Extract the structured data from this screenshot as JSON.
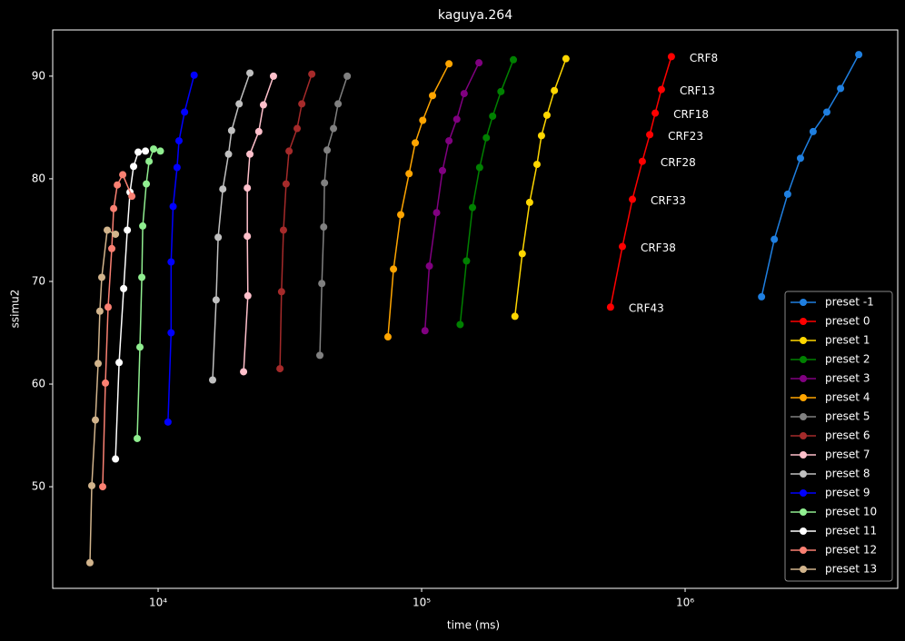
{
  "chart_data": {
    "type": "line",
    "title": "kaguya.264",
    "x_label": "time (ms)",
    "y_label": "ssimu2",
    "x_scale": "log",
    "xlim": [
      3980,
      6410000
    ],
    "ylim": [
      40.1,
      94.5
    ],
    "xticks": [
      {
        "value": 10000,
        "label": "10⁴"
      },
      {
        "value": 100000,
        "label": "10⁵"
      },
      {
        "value": 1000000,
        "label": "10⁶"
      }
    ],
    "yticks": [
      50,
      60,
      70,
      80,
      90
    ],
    "legend": "lower right",
    "annotations": [
      "CRF43",
      "CRF38",
      "CRF33",
      "CRF28",
      "CRF23",
      "CRF18",
      "CRF13",
      "CRF8"
    ],
    "series": [
      {
        "name": "preset -1",
        "color": "#1f7fe0",
        "x": [
          1950000,
          2180000,
          2450000,
          2740000,
          3060000,
          3450000,
          3890000,
          4560000
        ],
        "values": [
          68.5,
          74.1,
          78.5,
          82.0,
          84.6,
          86.5,
          88.8,
          92.1
        ]
      },
      {
        "name": "preset 0",
        "color": "#ff0000",
        "x": [
          521000,
          578000,
          631000,
          688000,
          734000,
          770000,
          813000,
          887000
        ],
        "values": [
          67.5,
          73.4,
          78.0,
          81.7,
          84.3,
          86.4,
          88.7,
          91.9
        ]
      },
      {
        "name": "preset 1",
        "color": "#ffd700",
        "x": [
          226000,
          241000,
          257000,
          274000,
          285000,
          299000,
          319000,
          353000
        ],
        "values": [
          66.6,
          72.7,
          77.7,
          81.4,
          84.2,
          86.2,
          88.6,
          91.7
        ]
      },
      {
        "name": "preset 2",
        "color": "#008000",
        "x": [
          140000,
          148000,
          156000,
          166000,
          176000,
          186000,
          200000,
          223000
        ],
        "values": [
          65.8,
          72.0,
          77.2,
          81.1,
          84.0,
          86.1,
          88.5,
          91.6
        ]
      },
      {
        "name": "preset 3",
        "color": "#800080",
        "x": [
          103000,
          107000,
          114000,
          120000,
          127000,
          136000,
          145000,
          165000
        ],
        "values": [
          65.2,
          71.5,
          76.7,
          80.8,
          83.7,
          85.8,
          88.3,
          91.3
        ]
      },
      {
        "name": "preset 4",
        "color": "#ffa500",
        "x": [
          74500,
          78200,
          83300,
          89600,
          94600,
          101000,
          110000,
          127000
        ],
        "values": [
          64.6,
          71.2,
          76.5,
          80.5,
          83.5,
          85.7,
          88.1,
          91.2
        ]
      },
      {
        "name": "preset 5",
        "color": "#808080",
        "x": [
          41100,
          41800,
          42500,
          42800,
          43800,
          46300,
          48200,
          52200
        ],
        "values": [
          62.8,
          69.8,
          75.3,
          79.6,
          82.8,
          84.9,
          87.3,
          90.0
        ]
      },
      {
        "name": "preset 6",
        "color": "#a52a2a",
        "x": [
          29000,
          29400,
          29900,
          30600,
          31400,
          33700,
          35100,
          38300
        ],
        "values": [
          61.5,
          69.0,
          75.0,
          79.5,
          82.7,
          84.9,
          87.3,
          90.2
        ]
      },
      {
        "name": "preset 7",
        "color": "#ffc0cb",
        "x": [
          21100,
          21900,
          21800,
          21800,
          22300,
          24100,
          25100,
          27400
        ],
        "values": [
          61.2,
          68.6,
          74.4,
          79.1,
          82.4,
          84.6,
          87.2,
          90.0
        ]
      },
      {
        "name": "preset 8",
        "color": "#c0c0c0",
        "x": [
          16100,
          16600,
          16900,
          17600,
          18500,
          19000,
          20300,
          22300
        ],
        "values": [
          60.4,
          68.2,
          74.3,
          79.0,
          82.4,
          84.7,
          87.3,
          90.3
        ]
      },
      {
        "name": "preset 9",
        "color": "#0000ff",
        "x": [
          10900,
          11200,
          11200,
          11400,
          11800,
          12000,
          12600,
          13700
        ],
        "values": [
          56.3,
          65.0,
          71.9,
          77.3,
          81.1,
          83.7,
          86.5,
          90.1
        ]
      },
      {
        "name": "preset 10",
        "color": "#90ee90",
        "x": [
          8330,
          8530,
          8670,
          8740,
          9020,
          9240,
          9610,
          10200
        ],
        "values": [
          54.7,
          63.6,
          70.4,
          75.4,
          79.5,
          81.7,
          82.9,
          82.7
        ]
      },
      {
        "name": "preset 11",
        "color": "#ffffff",
        "x": [
          6890,
          7110,
          7400,
          7640,
          7820,
          8070,
          8400,
          8950
        ],
        "values": [
          52.7,
          62.1,
          69.3,
          75.0,
          78.7,
          81.2,
          82.6,
          82.7
        ]
      },
      {
        "name": "preset 12",
        "color": "#fa8072",
        "x": [
          6160,
          6310,
          6460,
          6670,
          6780,
          7000,
          7340,
          7950
        ],
        "values": [
          50.0,
          60.1,
          67.5,
          73.2,
          77.1,
          79.4,
          80.4,
          78.3
        ]
      },
      {
        "name": "preset 13",
        "color": "#d2b48c",
        "x": [
          5510,
          5600,
          5780,
          5920,
          6010,
          6110,
          6410,
          6890
        ],
        "values": [
          42.6,
          50.1,
          56.5,
          62.0,
          67.1,
          70.4,
          75.0,
          74.6
        ]
      }
    ]
  }
}
